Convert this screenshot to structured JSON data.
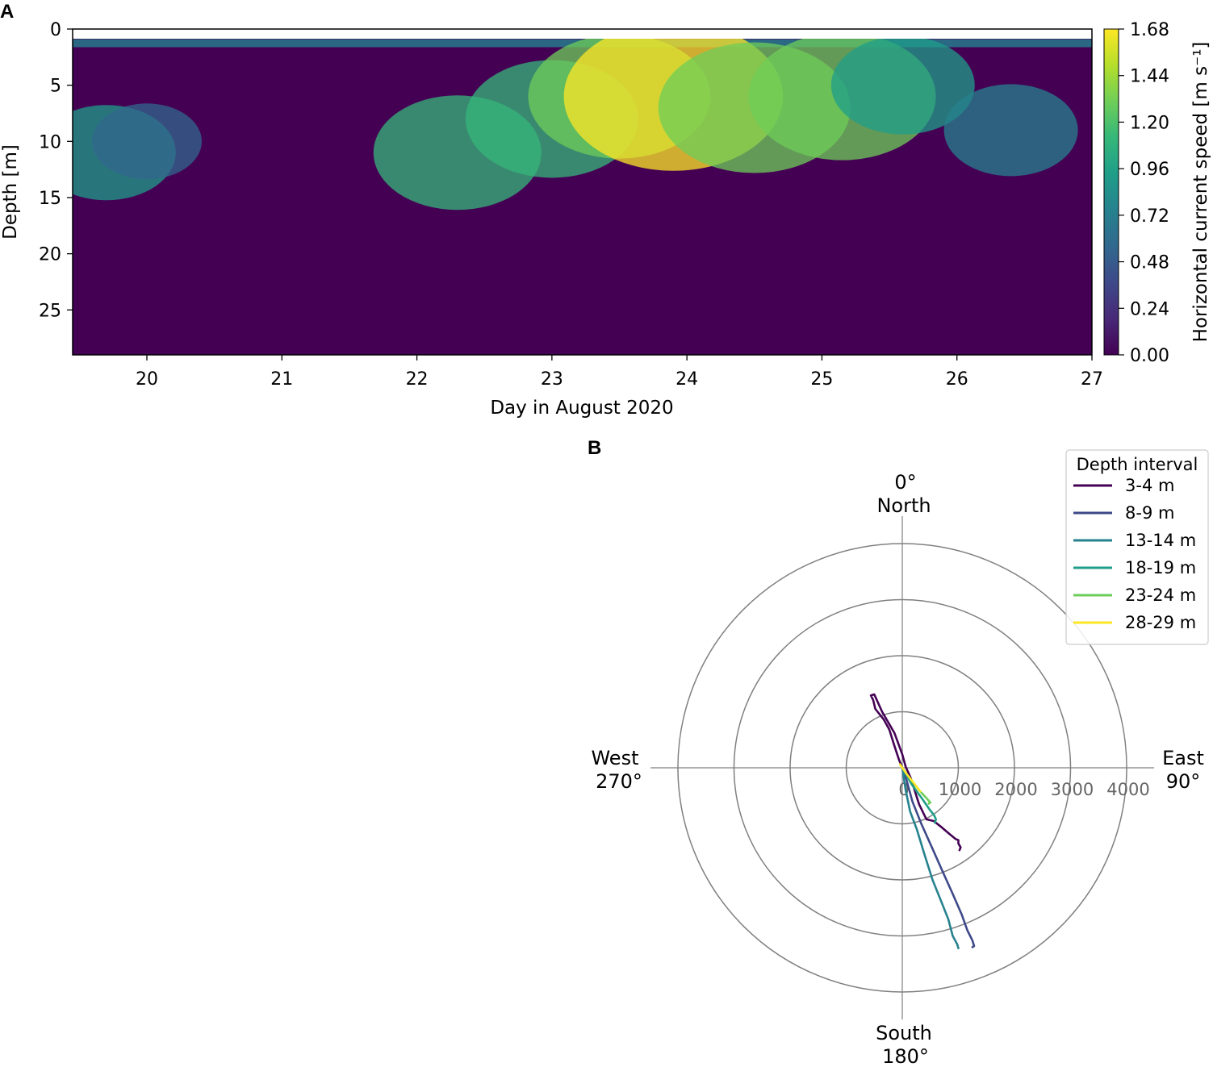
{
  "panels": {
    "a_letter": "A",
    "b_letter": "B"
  },
  "chart_data": [
    {
      "type": "heatmap",
      "panel": "A",
      "xlabel": "Day in August 2020",
      "ylabel": "Depth [m]",
      "xlim": [
        19.45,
        27.0
      ],
      "ylim": [
        29,
        0
      ],
      "xticks": [
        20,
        21,
        22,
        23,
        24,
        25,
        26,
        27
      ],
      "yticks": [
        0,
        5,
        10,
        15,
        20,
        25
      ],
      "data_top_depth": 0.9,
      "colorbar": {
        "label": "Horizontal current speed [m s⁻¹]",
        "ticks": [
          "0.00",
          "0.24",
          "0.48",
          "0.72",
          "0.96",
          "1.20",
          "1.44",
          "1.68"
        ],
        "range": [
          0.0,
          1.68
        ],
        "colormap": [
          "#440154",
          "#482878",
          "#3e4989",
          "#31688e",
          "#26828e",
          "#1f9e89",
          "#35b779",
          "#6ece58",
          "#b5de2b",
          "#fde725"
        ]
      },
      "speed_features": [
        {
          "day": 19.7,
          "depth": 11,
          "speed": 0.85
        },
        {
          "day": 20.0,
          "depth": 10,
          "speed": 0.55
        },
        {
          "day": 22.3,
          "depth": 11,
          "speed": 1.15
        },
        {
          "day": 23.0,
          "depth": 8,
          "speed": 1.2
        },
        {
          "day": 23.5,
          "depth": 6,
          "speed": 1.3
        },
        {
          "day": 23.9,
          "depth": 6,
          "speed": 1.68
        },
        {
          "day": 24.5,
          "depth": 7,
          "speed": 1.4
        },
        {
          "day": 25.15,
          "depth": 6,
          "speed": 1.35
        },
        {
          "day": 25.6,
          "depth": 5,
          "speed": 0.9
        },
        {
          "day": 26.4,
          "depth": 9,
          "speed": 0.8
        }
      ]
    },
    {
      "type": "line",
      "subtype": "polar-progressive-vector",
      "panel": "B",
      "rticks": [
        0,
        1000,
        2000,
        3000,
        4000
      ],
      "rlim": [
        0,
        4000
      ],
      "directions": {
        "north": "North",
        "north_deg": "0°",
        "east": "East",
        "east_deg": "90°",
        "south": "South",
        "south_deg": "180°",
        "west": "West",
        "west_deg": "270°"
      },
      "legend": {
        "title": "Depth interval",
        "position": "top-right"
      },
      "series": [
        {
          "name": "3-4 m",
          "color": "#440154",
          "points": [
            [
              0,
              0
            ],
            [
              -60,
              150
            ],
            [
              -150,
              420
            ],
            [
              -230,
              680
            ],
            [
              -330,
              860
            ],
            [
              -480,
              1050
            ],
            [
              -520,
              1210
            ],
            [
              -560,
              1290
            ],
            [
              -500,
              1310
            ],
            [
              -360,
              1000
            ],
            [
              -140,
              620
            ],
            [
              0,
              240
            ],
            [
              60,
              20
            ],
            [
              150,
              -180
            ],
            [
              300,
              -650
            ],
            [
              430,
              -920
            ],
            [
              560,
              -950
            ],
            [
              700,
              -1060
            ],
            [
              840,
              -1180
            ],
            [
              950,
              -1270
            ],
            [
              1000,
              -1290
            ],
            [
              1000,
              -1350
            ],
            [
              1040,
              -1420
            ],
            [
              1020,
              -1470
            ]
          ]
        },
        {
          "name": "8-9 m",
          "color": "#3e4989",
          "points": [
            [
              0,
              0
            ],
            [
              70,
              -200
            ],
            [
              180,
              -600
            ],
            [
              340,
              -1000
            ],
            [
              520,
              -1400
            ],
            [
              720,
              -1850
            ],
            [
              900,
              -2250
            ],
            [
              1060,
              -2620
            ],
            [
              1160,
              -2900
            ],
            [
              1250,
              -3080
            ],
            [
              1280,
              -3180
            ],
            [
              1250,
              -3200
            ]
          ]
        },
        {
          "name": "13-14 m",
          "color": "#26828e",
          "points": [
            [
              0,
              0
            ],
            [
              60,
              -400
            ],
            [
              140,
              -780
            ],
            [
              260,
              -1100
            ],
            [
              400,
              -1560
            ],
            [
              540,
              -2000
            ],
            [
              680,
              -2350
            ],
            [
              820,
              -2700
            ],
            [
              900,
              -3000
            ],
            [
              980,
              -3150
            ],
            [
              1000,
              -3220
            ]
          ]
        },
        {
          "name": "18-19 m",
          "color": "#1f9e89",
          "points": [
            [
              0,
              0
            ],
            [
              170,
              -300
            ],
            [
              360,
              -560
            ],
            [
              490,
              -750
            ],
            [
              570,
              -850
            ],
            [
              600,
              -920
            ],
            [
              580,
              -980
            ]
          ]
        },
        {
          "name": "23-24 m",
          "color": "#6ece58",
          "points": [
            [
              0,
              0
            ],
            [
              150,
              -210
            ],
            [
              300,
              -400
            ],
            [
              420,
              -530
            ],
            [
              500,
              -620
            ],
            [
              470,
              -640
            ]
          ]
        },
        {
          "name": "28-29 m",
          "color": "#fde725",
          "points": [
            [
              0,
              0
            ],
            [
              -40,
              60
            ],
            [
              70,
              -100
            ],
            [
              190,
              -250
            ],
            [
              280,
              -370
            ],
            [
              320,
              -420
            ]
          ]
        }
      ]
    }
  ]
}
